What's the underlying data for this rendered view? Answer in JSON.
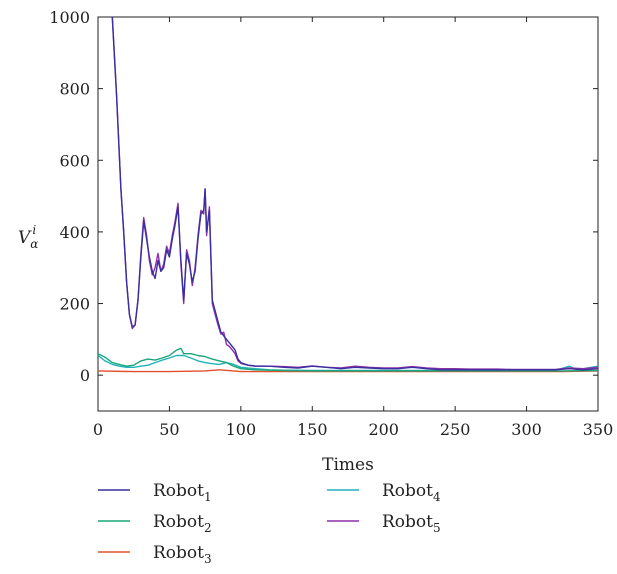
{
  "chart_data": {
    "type": "line",
    "title": "",
    "xlabel": "Times",
    "ylabel": "V_α^i",
    "ylabel_parts": {
      "base": "V",
      "sub": "α",
      "sup": "i"
    },
    "xlim": [
      0,
      350
    ],
    "ylim": [
      -100,
      1000
    ],
    "xticks": [
      0,
      50,
      100,
      150,
      200,
      250,
      300,
      350
    ],
    "yticks": [
      0,
      200,
      400,
      600,
      800,
      1000
    ],
    "grid": false,
    "legend_position": "bottom",
    "series": [
      {
        "name": "Robot1",
        "label_base": "Robot",
        "label_sub": "1",
        "color": "#3b2fa0",
        "points": [
          [
            10,
            1000
          ],
          [
            13,
            780
          ],
          [
            16,
            520
          ],
          [
            18,
            400
          ],
          [
            20,
            260
          ],
          [
            22,
            170
          ],
          [
            24,
            135
          ],
          [
            26,
            140
          ],
          [
            28,
            210
          ],
          [
            30,
            330
          ],
          [
            32,
            430
          ],
          [
            34,
            380
          ],
          [
            36,
            330
          ],
          [
            38,
            290
          ],
          [
            40,
            270
          ],
          [
            42,
            320
          ],
          [
            44,
            290
          ],
          [
            46,
            300
          ],
          [
            48,
            350
          ],
          [
            50,
            330
          ],
          [
            52,
            380
          ],
          [
            54,
            420
          ],
          [
            56,
            470
          ],
          [
            58,
            320
          ],
          [
            60,
            210
          ],
          [
            62,
            340
          ],
          [
            64,
            310
          ],
          [
            66,
            260
          ],
          [
            68,
            290
          ],
          [
            70,
            380
          ],
          [
            72,
            450
          ],
          [
            74,
            460
          ],
          [
            75,
            520
          ],
          [
            76,
            400
          ],
          [
            78,
            460
          ],
          [
            80,
            210
          ],
          [
            82,
            180
          ],
          [
            84,
            150
          ],
          [
            86,
            120
          ],
          [
            88,
            110
          ],
          [
            90,
            100
          ],
          [
            92,
            90
          ],
          [
            94,
            80
          ],
          [
            96,
            70
          ],
          [
            98,
            45
          ],
          [
            100,
            35
          ],
          [
            105,
            28
          ],
          [
            110,
            25
          ],
          [
            120,
            25
          ],
          [
            130,
            22
          ],
          [
            140,
            20
          ],
          [
            150,
            25
          ],
          [
            160,
            22
          ],
          [
            170,
            18
          ],
          [
            180,
            22
          ],
          [
            190,
            20
          ],
          [
            200,
            18
          ],
          [
            210,
            18
          ],
          [
            220,
            22
          ],
          [
            230,
            18
          ],
          [
            240,
            15
          ],
          [
            250,
            15
          ],
          [
            260,
            15
          ],
          [
            270,
            15
          ],
          [
            280,
            15
          ],
          [
            290,
            15
          ],
          [
            300,
            15
          ],
          [
            310,
            15
          ],
          [
            320,
            15
          ],
          [
            330,
            18
          ],
          [
            340,
            15
          ],
          [
            350,
            18
          ]
        ]
      },
      {
        "name": "Robot2",
        "label_base": "Robot",
        "label_sub": "2",
        "color": "#1aa57a",
        "points": [
          [
            0,
            60
          ],
          [
            5,
            50
          ],
          [
            10,
            35
          ],
          [
            15,
            30
          ],
          [
            20,
            25
          ],
          [
            25,
            28
          ],
          [
            30,
            40
          ],
          [
            35,
            45
          ],
          [
            40,
            42
          ],
          [
            45,
            48
          ],
          [
            50,
            55
          ],
          [
            55,
            70
          ],
          [
            58,
            75
          ],
          [
            60,
            60
          ],
          [
            65,
            60
          ],
          [
            70,
            55
          ],
          [
            75,
            52
          ],
          [
            80,
            45
          ],
          [
            85,
            40
          ],
          [
            90,
            35
          ],
          [
            95,
            25
          ],
          [
            100,
            18
          ],
          [
            110,
            15
          ],
          [
            120,
            14
          ],
          [
            130,
            13
          ],
          [
            150,
            12
          ],
          [
            175,
            12
          ],
          [
            200,
            12
          ],
          [
            225,
            12
          ],
          [
            250,
            12
          ],
          [
            275,
            12
          ],
          [
            300,
            12
          ],
          [
            325,
            12
          ],
          [
            350,
            13
          ]
        ]
      },
      {
        "name": "Robot3",
        "label_base": "Robot",
        "label_sub": "3",
        "color": "#e0502a",
        "points": [
          [
            0,
            12
          ],
          [
            25,
            10
          ],
          [
            50,
            10
          ],
          [
            75,
            12
          ],
          [
            85,
            15
          ],
          [
            100,
            10
          ],
          [
            125,
            10
          ],
          [
            150,
            10
          ],
          [
            175,
            10
          ],
          [
            200,
            10
          ],
          [
            225,
            10
          ],
          [
            250,
            10
          ],
          [
            275,
            10
          ],
          [
            300,
            10
          ],
          [
            325,
            10
          ],
          [
            350,
            12
          ]
        ]
      },
      {
        "name": "Robot4",
        "label_base": "Robot",
        "label_sub": "4",
        "color": "#1fb3b8",
        "points": [
          [
            0,
            55
          ],
          [
            5,
            40
          ],
          [
            10,
            30
          ],
          [
            15,
            25
          ],
          [
            20,
            22
          ],
          [
            25,
            22
          ],
          [
            30,
            25
          ],
          [
            35,
            28
          ],
          [
            40,
            35
          ],
          [
            45,
            42
          ],
          [
            50,
            48
          ],
          [
            55,
            55
          ],
          [
            60,
            55
          ],
          [
            65,
            48
          ],
          [
            70,
            40
          ],
          [
            75,
            35
          ],
          [
            80,
            32
          ],
          [
            85,
            30
          ],
          [
            90,
            35
          ],
          [
            95,
            30
          ],
          [
            100,
            22
          ],
          [
            110,
            18
          ],
          [
            120,
            15
          ],
          [
            130,
            14
          ],
          [
            150,
            13
          ],
          [
            175,
            13
          ],
          [
            200,
            13
          ],
          [
            225,
            13
          ],
          [
            250,
            13
          ],
          [
            275,
            13
          ],
          [
            300,
            13
          ],
          [
            320,
            13
          ],
          [
            330,
            25
          ],
          [
            335,
            15
          ],
          [
            350,
            25
          ]
        ]
      },
      {
        "name": "Robot5",
        "label_base": "Robot",
        "label_sub": "5",
        "color": "#8e2fa8",
        "points": [
          [
            10,
            1000
          ],
          [
            13,
            780
          ],
          [
            16,
            520
          ],
          [
            18,
            400
          ],
          [
            20,
            260
          ],
          [
            22,
            170
          ],
          [
            24,
            130
          ],
          [
            26,
            140
          ],
          [
            28,
            210
          ],
          [
            30,
            340
          ],
          [
            32,
            440
          ],
          [
            34,
            390
          ],
          [
            36,
            320
          ],
          [
            38,
            280
          ],
          [
            40,
            300
          ],
          [
            42,
            340
          ],
          [
            44,
            290
          ],
          [
            46,
            310
          ],
          [
            48,
            360
          ],
          [
            50,
            340
          ],
          [
            52,
            390
          ],
          [
            54,
            430
          ],
          [
            56,
            480
          ],
          [
            58,
            310
          ],
          [
            60,
            200
          ],
          [
            62,
            350
          ],
          [
            64,
            320
          ],
          [
            66,
            250
          ],
          [
            68,
            300
          ],
          [
            70,
            390
          ],
          [
            72,
            460
          ],
          [
            74,
            450
          ],
          [
            75,
            520
          ],
          [
            76,
            390
          ],
          [
            78,
            470
          ],
          [
            80,
            200
          ],
          [
            82,
            170
          ],
          [
            84,
            140
          ],
          [
            86,
            115
          ],
          [
            88,
            120
          ],
          [
            90,
            85
          ],
          [
            92,
            80
          ],
          [
            94,
            70
          ],
          [
            96,
            60
          ],
          [
            98,
            40
          ],
          [
            100,
            33
          ],
          [
            105,
            28
          ],
          [
            110,
            26
          ],
          [
            120,
            25
          ],
          [
            130,
            24
          ],
          [
            140,
            22
          ],
          [
            150,
            26
          ],
          [
            160,
            22
          ],
          [
            170,
            20
          ],
          [
            180,
            25
          ],
          [
            190,
            22
          ],
          [
            200,
            20
          ],
          [
            210,
            20
          ],
          [
            220,
            24
          ],
          [
            230,
            20
          ],
          [
            240,
            18
          ],
          [
            250,
            18
          ],
          [
            260,
            17
          ],
          [
            270,
            17
          ],
          [
            280,
            17
          ],
          [
            290,
            16
          ],
          [
            300,
            16
          ],
          [
            310,
            16
          ],
          [
            320,
            16
          ],
          [
            330,
            20
          ],
          [
            340,
            18
          ],
          [
            350,
            22
          ]
        ]
      }
    ]
  }
}
